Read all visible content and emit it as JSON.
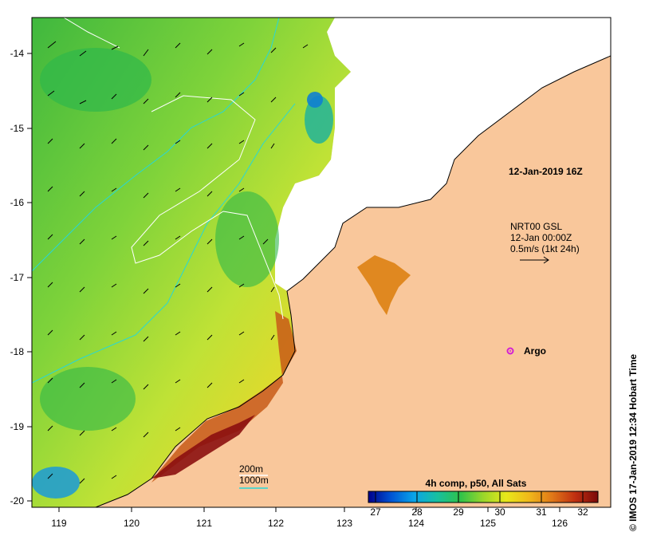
{
  "map": {
    "x_ticks": [
      "119",
      "120",
      "121",
      "122",
      "123",
      "124",
      "125",
      "126"
    ],
    "y_ticks": [
      "-14",
      "-15",
      "-16",
      "-17",
      "-18",
      "-19",
      "-20"
    ]
  },
  "annotations": {
    "datetime": "12-Jan-2019 16Z",
    "currents_line1": "NRT00 GSL",
    "currents_line2": "12-Jan 00:00Z",
    "currents_line3": "0.5m/s (1kt 24h)",
    "argo_label": "Argo"
  },
  "contours": {
    "label_200m": "200m",
    "label_1000m": "1000m",
    "color_200m": "#ffffff",
    "color_1000m": "#27d7d7"
  },
  "colorbar": {
    "title": "4h comp, p50, All Sats",
    "ticks": [
      "27",
      "28",
      "29",
      "30",
      "31",
      "32"
    ],
    "colors": [
      "#00008b",
      "#0055d4",
      "#0aa5e8",
      "#18c0a0",
      "#2ec24a",
      "#9ad62a",
      "#e8e81a",
      "#f0b81a",
      "#e07818",
      "#c03010",
      "#7a0a0a"
    ]
  },
  "side_text": "© IMOS 17-Jan-2019 12:34 Hobart Time",
  "colors": {
    "land": "#f9c79b",
    "cloud": "#ffffff",
    "argo": "#d321d3"
  }
}
